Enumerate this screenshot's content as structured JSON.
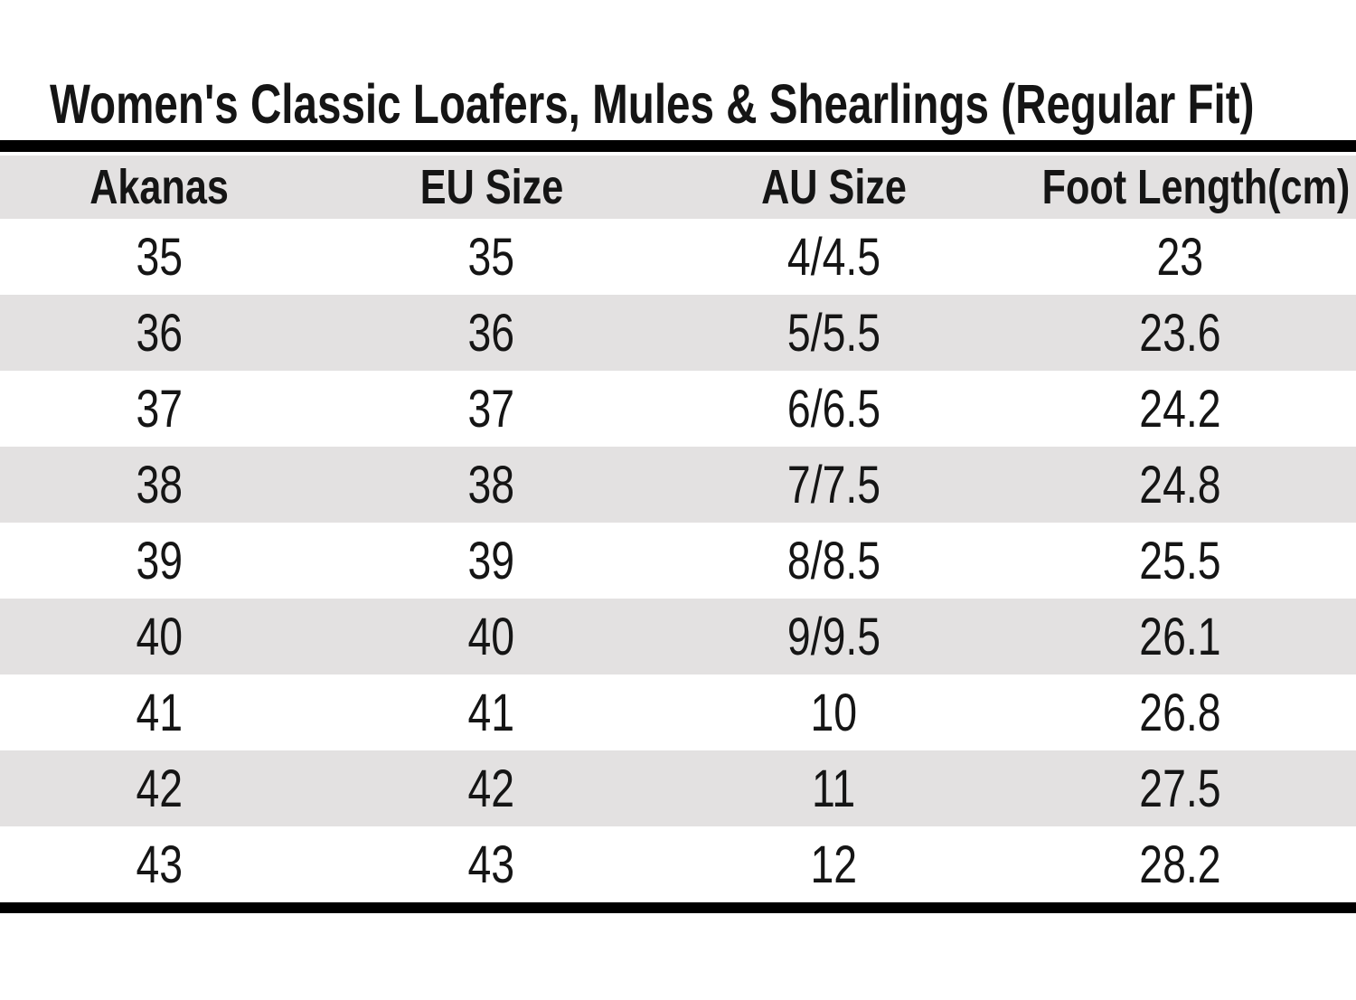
{
  "title": "Women's Classic Loafers, Mules & Shearlings (Regular Fit)",
  "table": {
    "headers": [
      "Akanas",
      "EU Size",
      "AU Size",
      "Foot Length(cm)"
    ],
    "rows": [
      [
        "35",
        "35",
        "4/4.5",
        "23"
      ],
      [
        "36",
        "36",
        "5/5.5",
        "23.6"
      ],
      [
        "37",
        "37",
        "6/6.5",
        "24.2"
      ],
      [
        "38",
        "38",
        "7/7.5",
        "24.8"
      ],
      [
        "39",
        "39",
        "8/8.5",
        "25.5"
      ],
      [
        "40",
        "40",
        "9/9.5",
        "26.1"
      ],
      [
        "41",
        "41",
        "10",
        "26.8"
      ],
      [
        "42",
        "42",
        "11",
        "27.5"
      ],
      [
        "43",
        "43",
        "12",
        "28.2"
      ]
    ]
  },
  "colors": {
    "stripe": "#e3e1e1",
    "rule": "#000000",
    "text": "#151515",
    "background": "#ffffff"
  }
}
